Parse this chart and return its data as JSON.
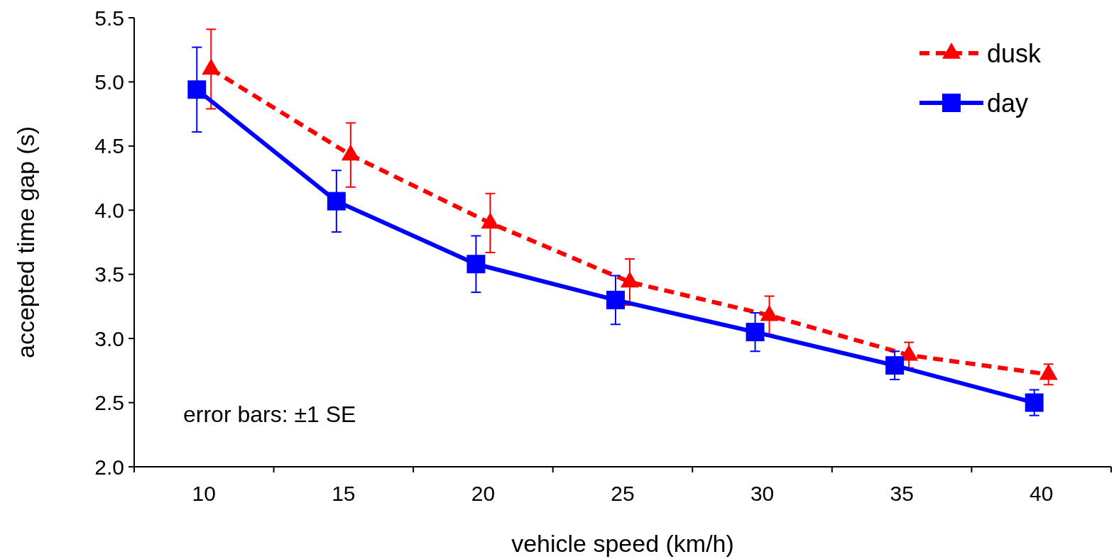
{
  "chart_data": {
    "type": "line",
    "xlabel": "vehicle speed (km/h)",
    "ylabel": "accepted time gap (s)",
    "categories": [
      "10",
      "15",
      "20",
      "25",
      "30",
      "35",
      "40"
    ],
    "ylim": [
      2.0,
      5.5
    ],
    "yticks": [
      {
        "value": 2.0,
        "label": "2.0"
      },
      {
        "value": 2.5,
        "label": "2.5"
      },
      {
        "value": 3.0,
        "label": "3.0"
      },
      {
        "value": 3.5,
        "label": "3.5"
      },
      {
        "value": 4.0,
        "label": "4.0"
      },
      {
        "value": 4.5,
        "label": "4.5"
      },
      {
        "value": 5.0,
        "label": "5.0"
      },
      {
        "value": 5.5,
        "label": "5.5"
      }
    ],
    "legend": "top right",
    "grid": false,
    "annotations": [
      "error bars: ±1 SE"
    ],
    "series": [
      {
        "name": "dusk",
        "color": "#ff0000",
        "marker": "triangle",
        "line_style": "dashed",
        "values": [
          5.1,
          4.43,
          3.9,
          3.44,
          3.18,
          2.87,
          2.72
        ],
        "errors": [
          0.31,
          0.25,
          0.23,
          0.18,
          0.15,
          0.1,
          0.08
        ]
      },
      {
        "name": "day",
        "color": "#0000ff",
        "marker": "square",
        "line_style": "solid",
        "values": [
          4.94,
          4.07,
          3.58,
          3.3,
          3.05,
          2.79,
          2.5
        ],
        "errors": [
          0.33,
          0.24,
          0.22,
          0.19,
          0.15,
          0.11,
          0.1
        ]
      }
    ]
  }
}
